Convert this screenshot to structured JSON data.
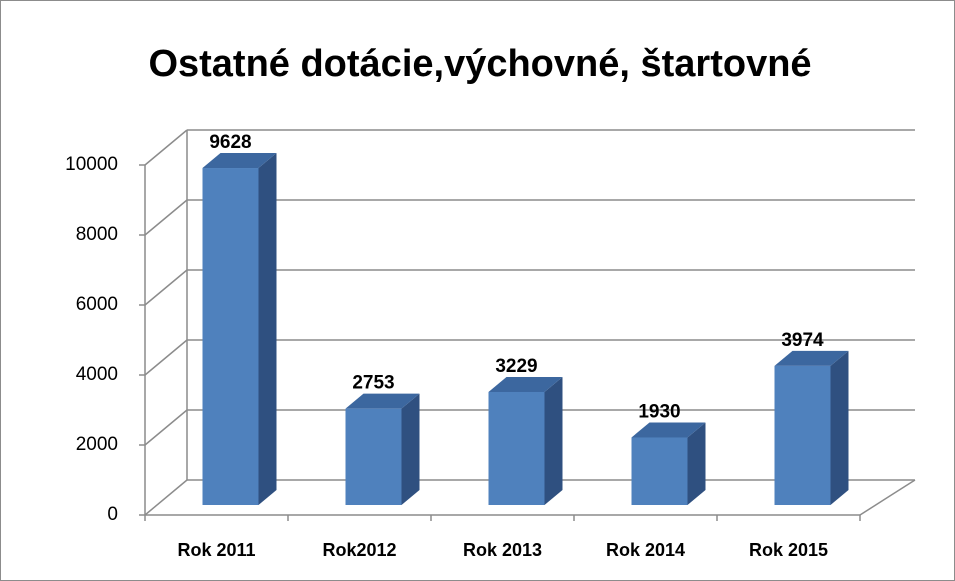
{
  "chart_data": {
    "type": "bar3d",
    "title": "Ostatné dotácie,výchovné, štartovné",
    "categories": [
      "Rok 2011",
      "Rok2012",
      "Rok 2013",
      "Rok 2014",
      "Rok 2015"
    ],
    "values": [
      9628,
      2753,
      3229,
      1930,
      3974
    ],
    "color": "#4f81bd",
    "ylim": [
      0,
      10000
    ],
    "yticks": [
      0,
      2000,
      4000,
      6000,
      8000,
      10000
    ],
    "grid": true
  }
}
